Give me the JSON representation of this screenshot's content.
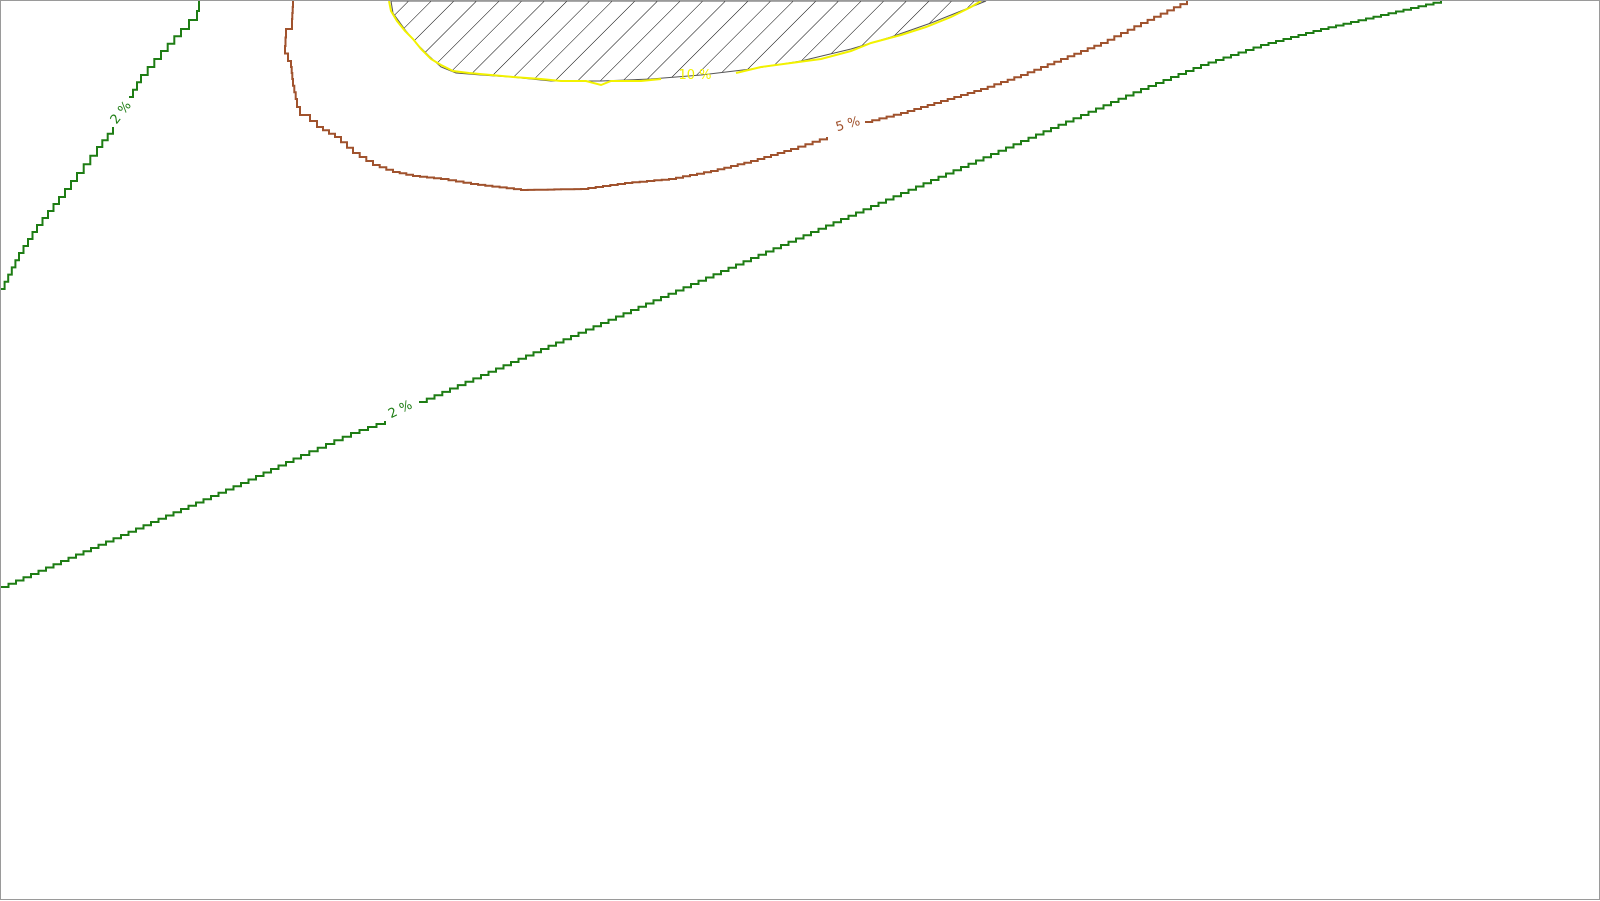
{
  "map": {
    "colors": {
      "background": "#ffffff",
      "frame": "#9a9a9a",
      "contour_2": "#1e7d14",
      "contour_5": "#a0522d",
      "contour_10": "#f2f200",
      "hatch": "#000000"
    },
    "contours": [
      {
        "id": "contour-2-left",
        "value_pct": 2,
        "label": "2 %"
      },
      {
        "id": "contour-2-main",
        "value_pct": 2,
        "label": "2 %"
      },
      {
        "id": "contour-5",
        "value_pct": 5,
        "label": "5 %"
      },
      {
        "id": "contour-10",
        "value_pct": 10,
        "label": "10 %"
      }
    ],
    "hatched_zone": {
      "pattern": "diagonal-lines"
    }
  }
}
